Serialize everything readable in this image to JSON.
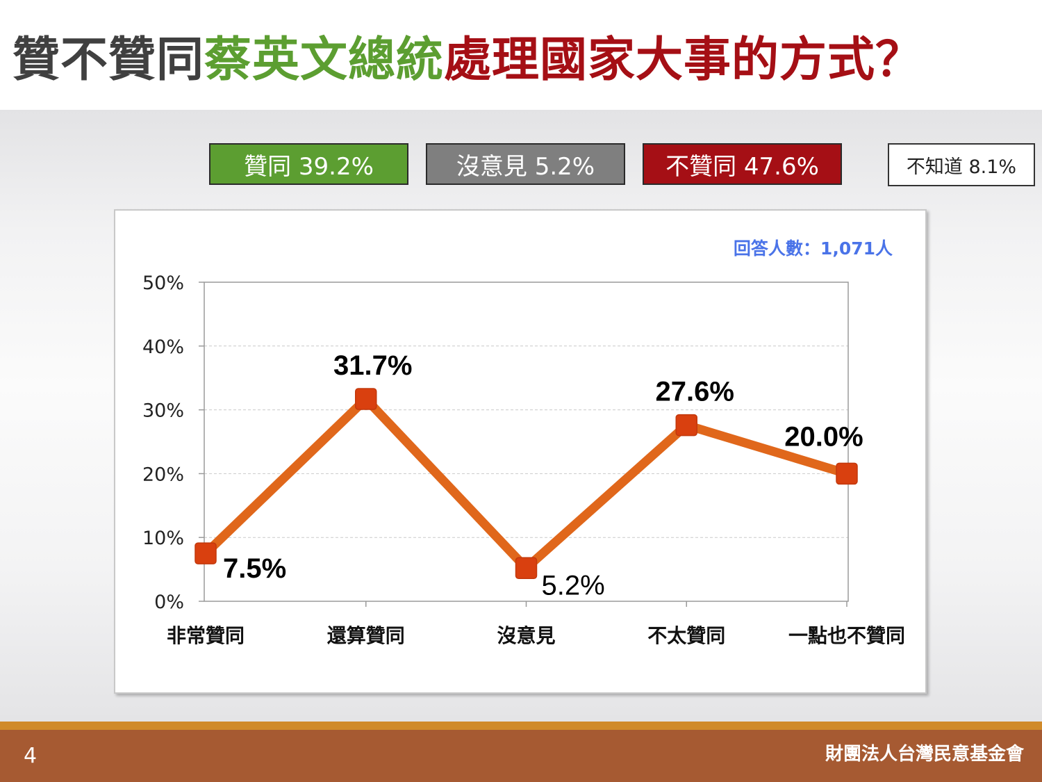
{
  "title": {
    "part1": "贊不贊同",
    "part2": "蔡英文總統",
    "part3": "處理國家大事的方式？",
    "part1_color": "#404040",
    "part2_color": "#5c9e31",
    "part3_color": "#a50f15"
  },
  "summary": [
    {
      "label": "贊同 39.2%",
      "bg": "#5c9e31",
      "fg": "#ffffff"
    },
    {
      "label": "沒意見 5.2%",
      "bg": "#7f7f7f",
      "fg": "#ffffff"
    },
    {
      "label": "不贊同 47.6%",
      "bg": "#a50f15",
      "fg": "#ffffff"
    },
    {
      "label": "不知道 8.1%",
      "bg": "#ffffff",
      "fg": "#222222"
    }
  ],
  "respondents": "回答人數：1,071人",
  "chart_data": {
    "type": "line",
    "categories": [
      "非常贊同",
      "還算贊同",
      "沒意見",
      "不太贊同",
      "一點也不贊同"
    ],
    "values": [
      7.5,
      31.7,
      5.2,
      27.6,
      20.0
    ],
    "data_labels": [
      "7.5%",
      "31.7%",
      "5.2%",
      "27.6%",
      "20.0%"
    ],
    "y_ticks": [
      "0%",
      "10%",
      "20%",
      "30%",
      "40%",
      "50%"
    ],
    "ylim": [
      0,
      50
    ],
    "grid": true,
    "line_color": "#e0671b",
    "marker_color": "#d9400f"
  },
  "footer": {
    "page_number": "4",
    "organization": "財團法人台灣民意基金會"
  }
}
